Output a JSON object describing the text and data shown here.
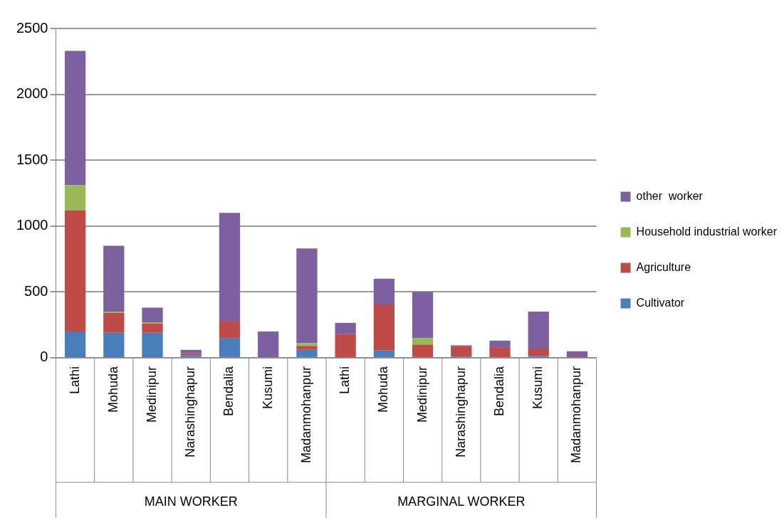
{
  "chart_data": {
    "type": "bar",
    "stacked": true,
    "categories": [
      "Lathi",
      "Mohuda",
      "Medinipur",
      "Narashinghapur",
      "Bendalia",
      "Kusumi",
      "Madanmohanpur",
      "Lathi",
      "Mohuda",
      "Medinipur",
      "Narashinghapur",
      "Bendalia",
      "Kusumi",
      "Madanmohanpur"
    ],
    "series": [
      {
        "name": "Cultivator",
        "color": "#4a7ebb",
        "values": [
          200,
          190,
          190,
          20,
          150,
          0,
          60,
          null,
          55,
          null,
          10,
          0,
          15,
          0
        ]
      },
      {
        "name": "Agriculture",
        "color": "#be4b48",
        "values": [
          920,
          150,
          70,
          15,
          130,
          0,
          30,
          180,
          350,
          100,
          80,
          80,
          55,
          10
        ]
      },
      {
        "name": "Household industrial worker",
        "color": "#98b954",
        "values": [
          190,
          10,
          10,
          0,
          0,
          0,
          20,
          0,
          0,
          50,
          0,
          0,
          0,
          0
        ]
      },
      {
        "name": "other  worker",
        "color": "#7d60a0",
        "values": [
          1020,
          500,
          110,
          25,
          820,
          200,
          720,
          85,
          195,
          350,
          5,
          50,
          280,
          40
        ]
      }
    ],
    "annotations": [
      "MAIN WORKER",
      "MARGINAL WORKER"
    ],
    "ylim": [
      0,
      2500
    ],
    "yticks": [
      0,
      500,
      1000,
      1500,
      2000,
      2500
    ],
    "grid": "y",
    "legend": "right"
  }
}
